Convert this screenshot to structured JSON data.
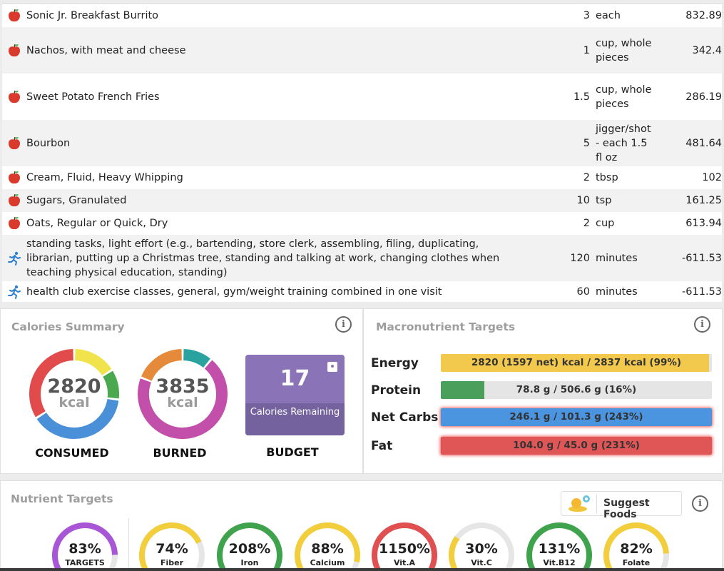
{
  "diary": [
    {
      "type": "food",
      "icon": "apple-icon",
      "desc": "Sonic Jr. Breakfast Burrito",
      "amount": "3",
      "unit": "each",
      "calories": "832.89"
    },
    {
      "type": "food",
      "icon": "apple-icon",
      "desc": "Nachos, with meat and cheese",
      "amount": "1",
      "unit": "cup, whole pieces",
      "calories": "342.4"
    },
    {
      "type": "food",
      "icon": "apple-icon",
      "desc": "Sweet Potato French Fries",
      "amount": "1.5",
      "unit": "cup, whole pieces",
      "calories": "286.19"
    },
    {
      "type": "food",
      "icon": "apple-icon",
      "desc": "Bourbon",
      "amount": "5",
      "unit": "jigger/shot - each 1.5 fl oz",
      "calories": "481.64"
    },
    {
      "type": "food",
      "icon": "apple-icon",
      "desc": "Cream, Fluid, Heavy Whipping",
      "amount": "2",
      "unit": "tbsp",
      "calories": "102"
    },
    {
      "type": "food",
      "icon": "apple-icon",
      "desc": "Sugars, Granulated",
      "amount": "10",
      "unit": "tsp",
      "calories": "161.25"
    },
    {
      "type": "food",
      "icon": "apple-icon",
      "desc": "Oats, Regular or Quick, Dry",
      "amount": "2",
      "unit": "cup",
      "calories": "613.94"
    },
    {
      "type": "exercise",
      "icon": "runner-icon",
      "desc": "standing tasks, light effort (e.g., bartending, store clerk, assembling, filing, duplicating, librarian, putting up a Christmas tree, standing and talking at work, changing clothes when teaching physical education, standing)",
      "amount": "120",
      "unit": "minutes",
      "calories": "-611.53"
    },
    {
      "type": "exercise",
      "icon": "runner-icon",
      "desc": "health club exercise classes, general, gym/weight training combined in one visit",
      "amount": "60",
      "unit": "minutes",
      "calories": "-611.53"
    }
  ],
  "calories_summary": {
    "title": "Calories Summary",
    "consumed": {
      "value": "2820",
      "unit": "kcal",
      "label": "CONSUMED",
      "segments": [
        {
          "color": "#f0e34b",
          "fraction": 0.16
        },
        {
          "color": "#4aa84f",
          "fraction": 0.11
        },
        {
          "color": "#4a90d9",
          "fraction": 0.39
        },
        {
          "color": "#e14b4b",
          "fraction": 0.34
        }
      ]
    },
    "burned": {
      "value": "3835",
      "unit": "kcal",
      "label": "BURNED",
      "segments": [
        {
          "color": "#2aa3a0",
          "fraction": 0.11
        },
        {
          "color": "#c24faa",
          "fraction": 0.7
        },
        {
          "color": "#e48a3a",
          "fraction": 0.19
        }
      ]
    },
    "budget": {
      "value": "17",
      "sub_label": "Calories Remaining",
      "label": "BUDGET",
      "color": "#8b73b8"
    }
  },
  "macro_targets": {
    "title": "Macronutrient Targets",
    "rows": [
      {
        "label": "Energy",
        "text": "2820 (1597 net) kcal / 2837 kcal (99%)",
        "fill": 0.99,
        "color": "#f2c94c",
        "over": false
      },
      {
        "label": "Protein",
        "text": "78.8 g / 506.6 g (16%)",
        "fill": 0.16,
        "color": "#4aa05a",
        "over": false
      },
      {
        "label": "Net Carbs",
        "text": "246.1 g / 101.3 g (243%)",
        "fill": 1.0,
        "color": "#4a94e0",
        "over": true
      },
      {
        "label": "Fat",
        "text": "104.0 g / 45.0 g (231%)",
        "fill": 1.0,
        "color": "#e05555",
        "over": true
      }
    ]
  },
  "nutrient_targets": {
    "title": "Nutrient Targets",
    "suggest_label": "Suggest Foods",
    "items": [
      {
        "pct": "83%",
        "name": "TARGETS",
        "value": 0.83,
        "color": "#a855d6"
      },
      {
        "pct": "74%",
        "name": "Fiber",
        "value": 0.74,
        "color": "#f2cd3c"
      },
      {
        "pct": "208%",
        "name": "Iron",
        "value": 1.0,
        "color": "#3fa34d"
      },
      {
        "pct": "88%",
        "name": "Calcium",
        "value": 0.88,
        "color": "#f2cd3c"
      },
      {
        "pct": "1150%",
        "name": "Vit.A",
        "value": 1.0,
        "color": "#e05050"
      },
      {
        "pct": "30%",
        "name": "Vit.C",
        "value": 0.3,
        "color": "#f2cd3c"
      },
      {
        "pct": "131%",
        "name": "Vit.B12",
        "value": 1.0,
        "color": "#3fa34d"
      },
      {
        "pct": "82%",
        "name": "Folate",
        "value": 0.82,
        "color": "#f2cd3c"
      }
    ]
  }
}
